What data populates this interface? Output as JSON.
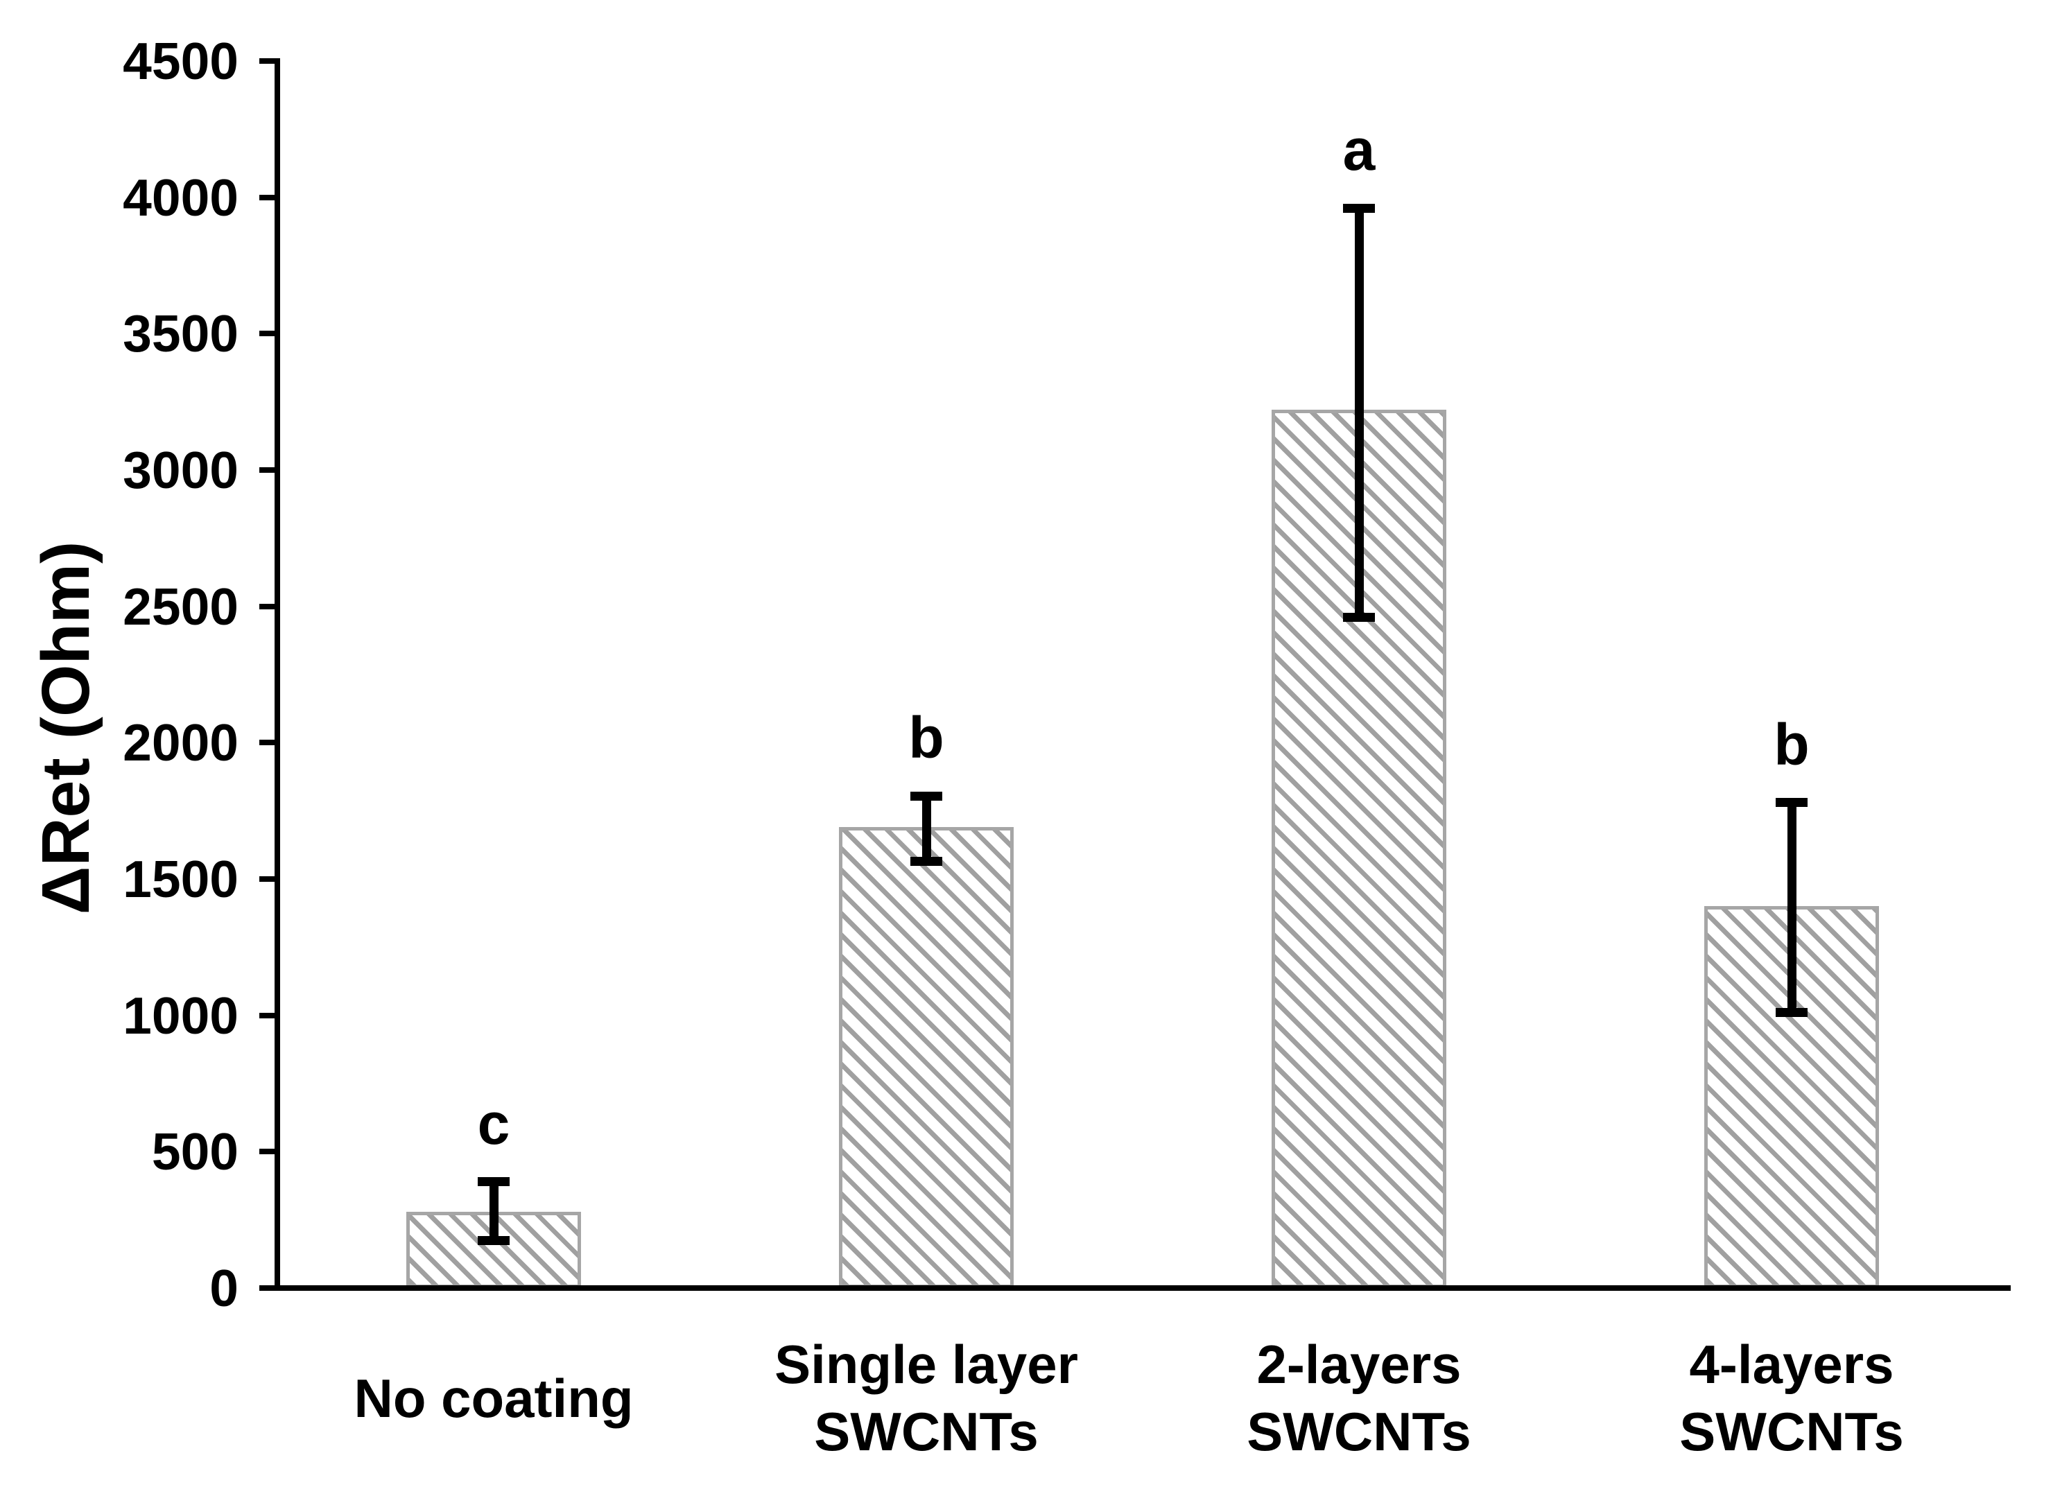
{
  "figure": {
    "background": "#ffffff"
  },
  "chart_data": {
    "type": "bar",
    "title": "",
    "xlabel": "",
    "ylabel": "ΔRet (Ohm)",
    "ylim": [
      0,
      4500
    ],
    "ytick_step": 500,
    "yticks": [
      0,
      500,
      1000,
      1500,
      2000,
      2500,
      3000,
      3500,
      4000,
      4500
    ],
    "grid": false,
    "legend_position": "none",
    "categories": [
      [
        "No coating"
      ],
      [
        "Single layer",
        "SWCNTs"
      ],
      [
        "2-layers",
        "SWCNTs"
      ],
      [
        "4-layers",
        "SWCNTs"
      ]
    ],
    "values": [
      280,
      1690,
      3220,
      1400
    ],
    "error_bars": [
      {
        "upper": 390,
        "lower": 175
      },
      {
        "upper": 1805,
        "lower": 1565
      },
      {
        "upper": 3960,
        "lower": 2460
      },
      {
        "upper": 1780,
        "lower": 1010
      }
    ],
    "sig_letters": [
      "c",
      "b",
      "a",
      "b"
    ],
    "colors": {
      "bar_fill": "#ffffff",
      "hatch": "#a0a0a0",
      "bar_border": "#a6a6a6",
      "axis": "#000000",
      "text": "#000000"
    }
  }
}
